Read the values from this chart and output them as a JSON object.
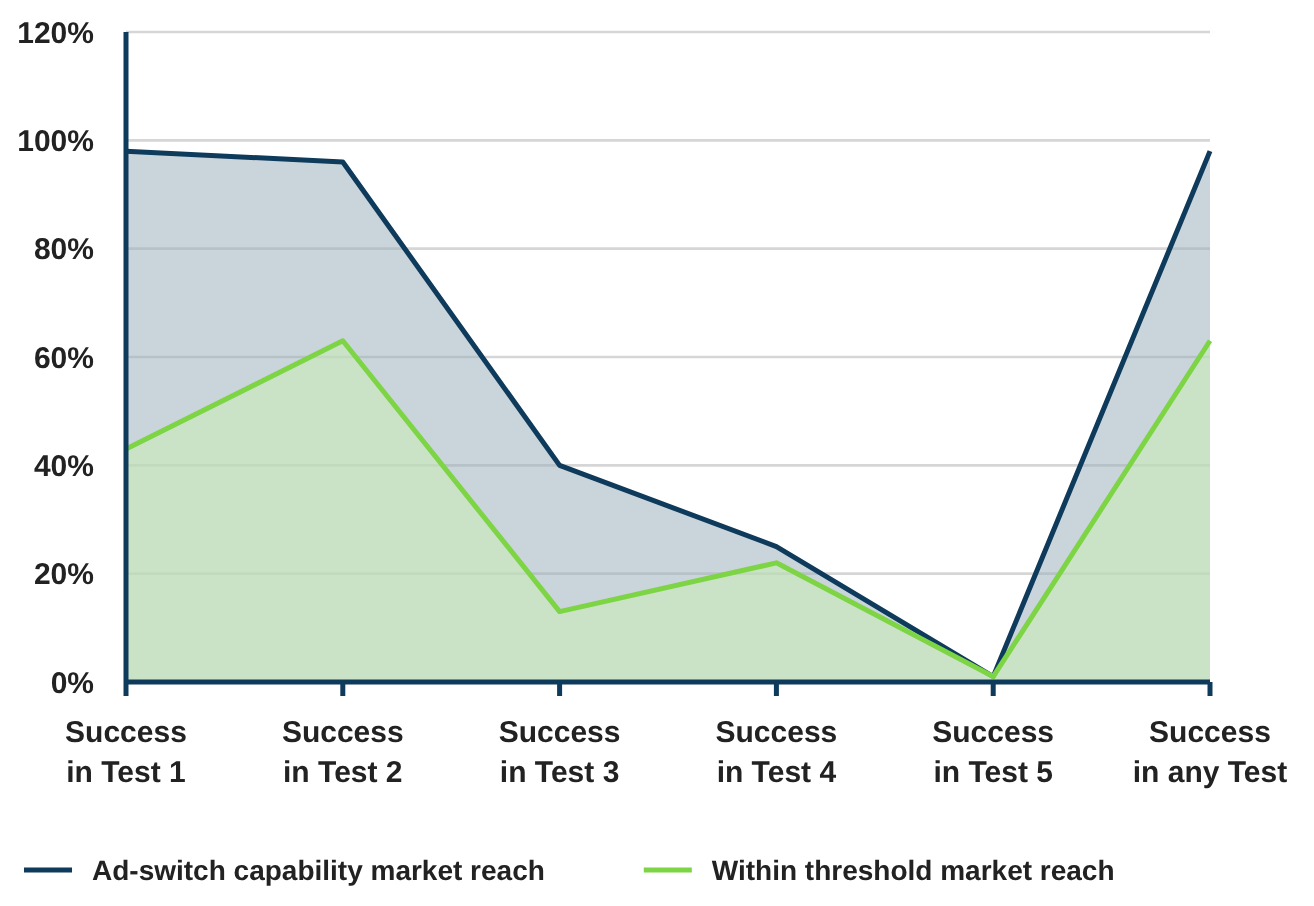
{
  "chart_data": {
    "type": "area",
    "categories": [
      "Success\nin Test 1",
      "Success\nin Test 2",
      "Success\nin Test 3",
      "Success\nin Test 4",
      "Success\nin Test 5",
      "Success\nin any Test"
    ],
    "series": [
      {
        "name": "Ad-switch capability market reach",
        "color": "#0e3a5c",
        "values": [
          98,
          96,
          40,
          25,
          1,
          98
        ]
      },
      {
        "name": "Within threshold market reach",
        "color": "#7dd444",
        "values": [
          43,
          63,
          13,
          22,
          1,
          63
        ]
      }
    ],
    "ylim": [
      0,
      120
    ],
    "yticks": [
      {
        "value": 0,
        "label": "0%"
      },
      {
        "value": 20,
        "label": "20%"
      },
      {
        "value": 40,
        "label": "40%"
      },
      {
        "value": 60,
        "label": "60%"
      },
      {
        "value": 80,
        "label": "80%"
      },
      {
        "value": 100,
        "label": "100%"
      },
      {
        "value": 120,
        "label": "120%"
      }
    ],
    "grid": "y",
    "legend": "bottom",
    "marker": "none",
    "line_style": "solid"
  }
}
